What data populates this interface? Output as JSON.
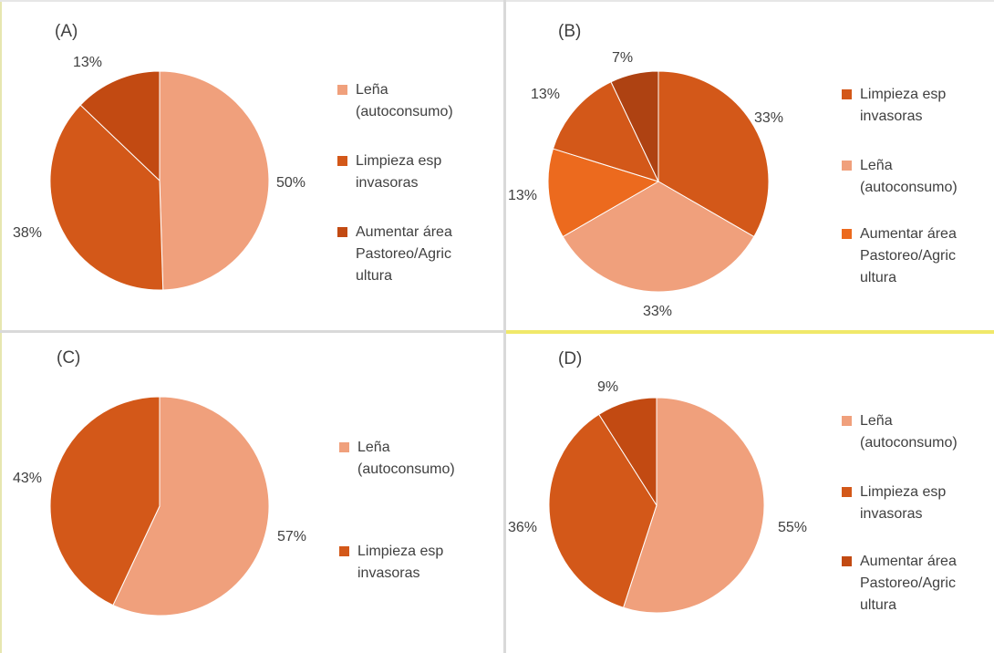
{
  "colors": {
    "lena": "#F0A07C",
    "limpieza": "#D35819",
    "aumentar": "#C24A12",
    "orange": "#EC6A1E",
    "dark": "#AE4212",
    "highlight": "#F0E86A",
    "divider": "#D9D9D9"
  },
  "chart_data": [
    {
      "type": "pie",
      "panel_label": "(A)",
      "slices": [
        {
          "label": [
            "Leña",
            "(autoconsumo)"
          ],
          "value": 50,
          "pct_label": "50%",
          "color": "#F0A07C"
        },
        {
          "label": [
            "Limpieza esp",
            "invasoras"
          ],
          "value": 38,
          "pct_label": "38%",
          "color": "#D35819"
        },
        {
          "label": [
            "Aumentar área",
            "Pastoreo/Agric",
            "ultura"
          ],
          "value": 13,
          "pct_label": "13%",
          "color": "#C24A12"
        }
      ]
    },
    {
      "type": "pie",
      "panel_label": "(B)",
      "slices": [
        {
          "label": [
            "Limpieza esp",
            "invasoras"
          ],
          "value": 33,
          "pct_label": "33%",
          "color": "#D35819"
        },
        {
          "label": [
            "Leña",
            "(autoconsumo)"
          ],
          "value": 33,
          "pct_label": "33%",
          "color": "#F0A07C"
        },
        {
          "label": [
            "Aumentar área",
            "Pastoreo/Agric",
            "ultura"
          ],
          "value": 13,
          "pct_label": "13%",
          "color": "#EC6A1E"
        },
        {
          "label": [],
          "value": 13,
          "pct_label": "13%",
          "color": "#D35819"
        },
        {
          "label": [],
          "value": 7,
          "pct_label": "7%",
          "color": "#AE4212"
        }
      ]
    },
    {
      "type": "pie",
      "panel_label": "(C)",
      "slices": [
        {
          "label": [
            "Leña",
            "(autoconsumo)"
          ],
          "value": 57,
          "pct_label": "57%",
          "color": "#F0A07C"
        },
        {
          "label": [
            "Limpieza esp",
            "invasoras"
          ],
          "value": 43,
          "pct_label": "43%",
          "color": "#D35819"
        }
      ]
    },
    {
      "type": "pie",
      "panel_label": "(D)",
      "slices": [
        {
          "label": [
            "Leña",
            "(autoconsumo)"
          ],
          "value": 55,
          "pct_label": "55%",
          "color": "#F0A07C"
        },
        {
          "label": [
            "Limpieza esp",
            "invasoras"
          ],
          "value": 36,
          "pct_label": "36%",
          "color": "#D35819"
        },
        {
          "label": [
            "Aumentar área",
            "Pastoreo/Agric",
            "ultura"
          ],
          "value": 9,
          "pct_label": "9%",
          "color": "#C24A12"
        }
      ]
    }
  ]
}
